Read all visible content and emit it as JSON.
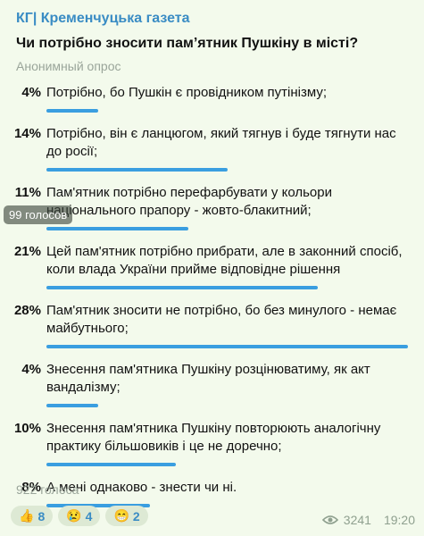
{
  "channel": "КГ| Кременчуцька газета",
  "question": "Чи потрібно зносити пам’ятник Пушкіну в місті?",
  "poll_type": "Анонимный опрос",
  "options": [
    {
      "percent": {
        "value": 4,
        "label": "4%"
      },
      "text": "Потрібно, бо Пушкін є провідником путінізму;"
    },
    {
      "percent": {
        "value": 14,
        "label": "14%"
      },
      "text": "Потрібно, він є ланцюгом, який тягнув і буде тягнути нас до росії;"
    },
    {
      "percent": {
        "value": 11,
        "label": "11%"
      },
      "text": "Пам'ятник потрібно перефарбувати у кольори національного прапору - жовто-блакитний;"
    },
    {
      "percent": {
        "value": 21,
        "label": "21%"
      },
      "text": "Цей пам'ятник потрібно прибрати, але в законний спосіб, коли влада України прийме відповідне рішення"
    },
    {
      "percent": {
        "value": 28,
        "label": "28%"
      },
      "text": "Пам'ятник зносити не потрібно, бо без минулого - немає майбутнього;"
    },
    {
      "percent": {
        "value": 4,
        "label": "4%"
      },
      "text": "Знесення пам'ятника Пушкіну розцінюватиму, як акт вандалізму;"
    },
    {
      "percent": {
        "value": 10,
        "label": "10%"
      },
      "text": "Знесення пам'ятника Пушкіну повторюють аналогічну практику більшовиків і це не доречно;"
    },
    {
      "percent": {
        "value": 8,
        "label": "8%"
      },
      "text": "А мені однаково - знести чи ні."
    }
  ],
  "tooltip": "99 голосов",
  "total_votes": "922 голоса",
  "reactions": [
    {
      "emoji": "👍",
      "count": 8
    },
    {
      "emoji": "😢",
      "count": 4
    },
    {
      "emoji": "😁",
      "count": 2
    }
  ],
  "views": 3241,
  "time": "19:20"
}
